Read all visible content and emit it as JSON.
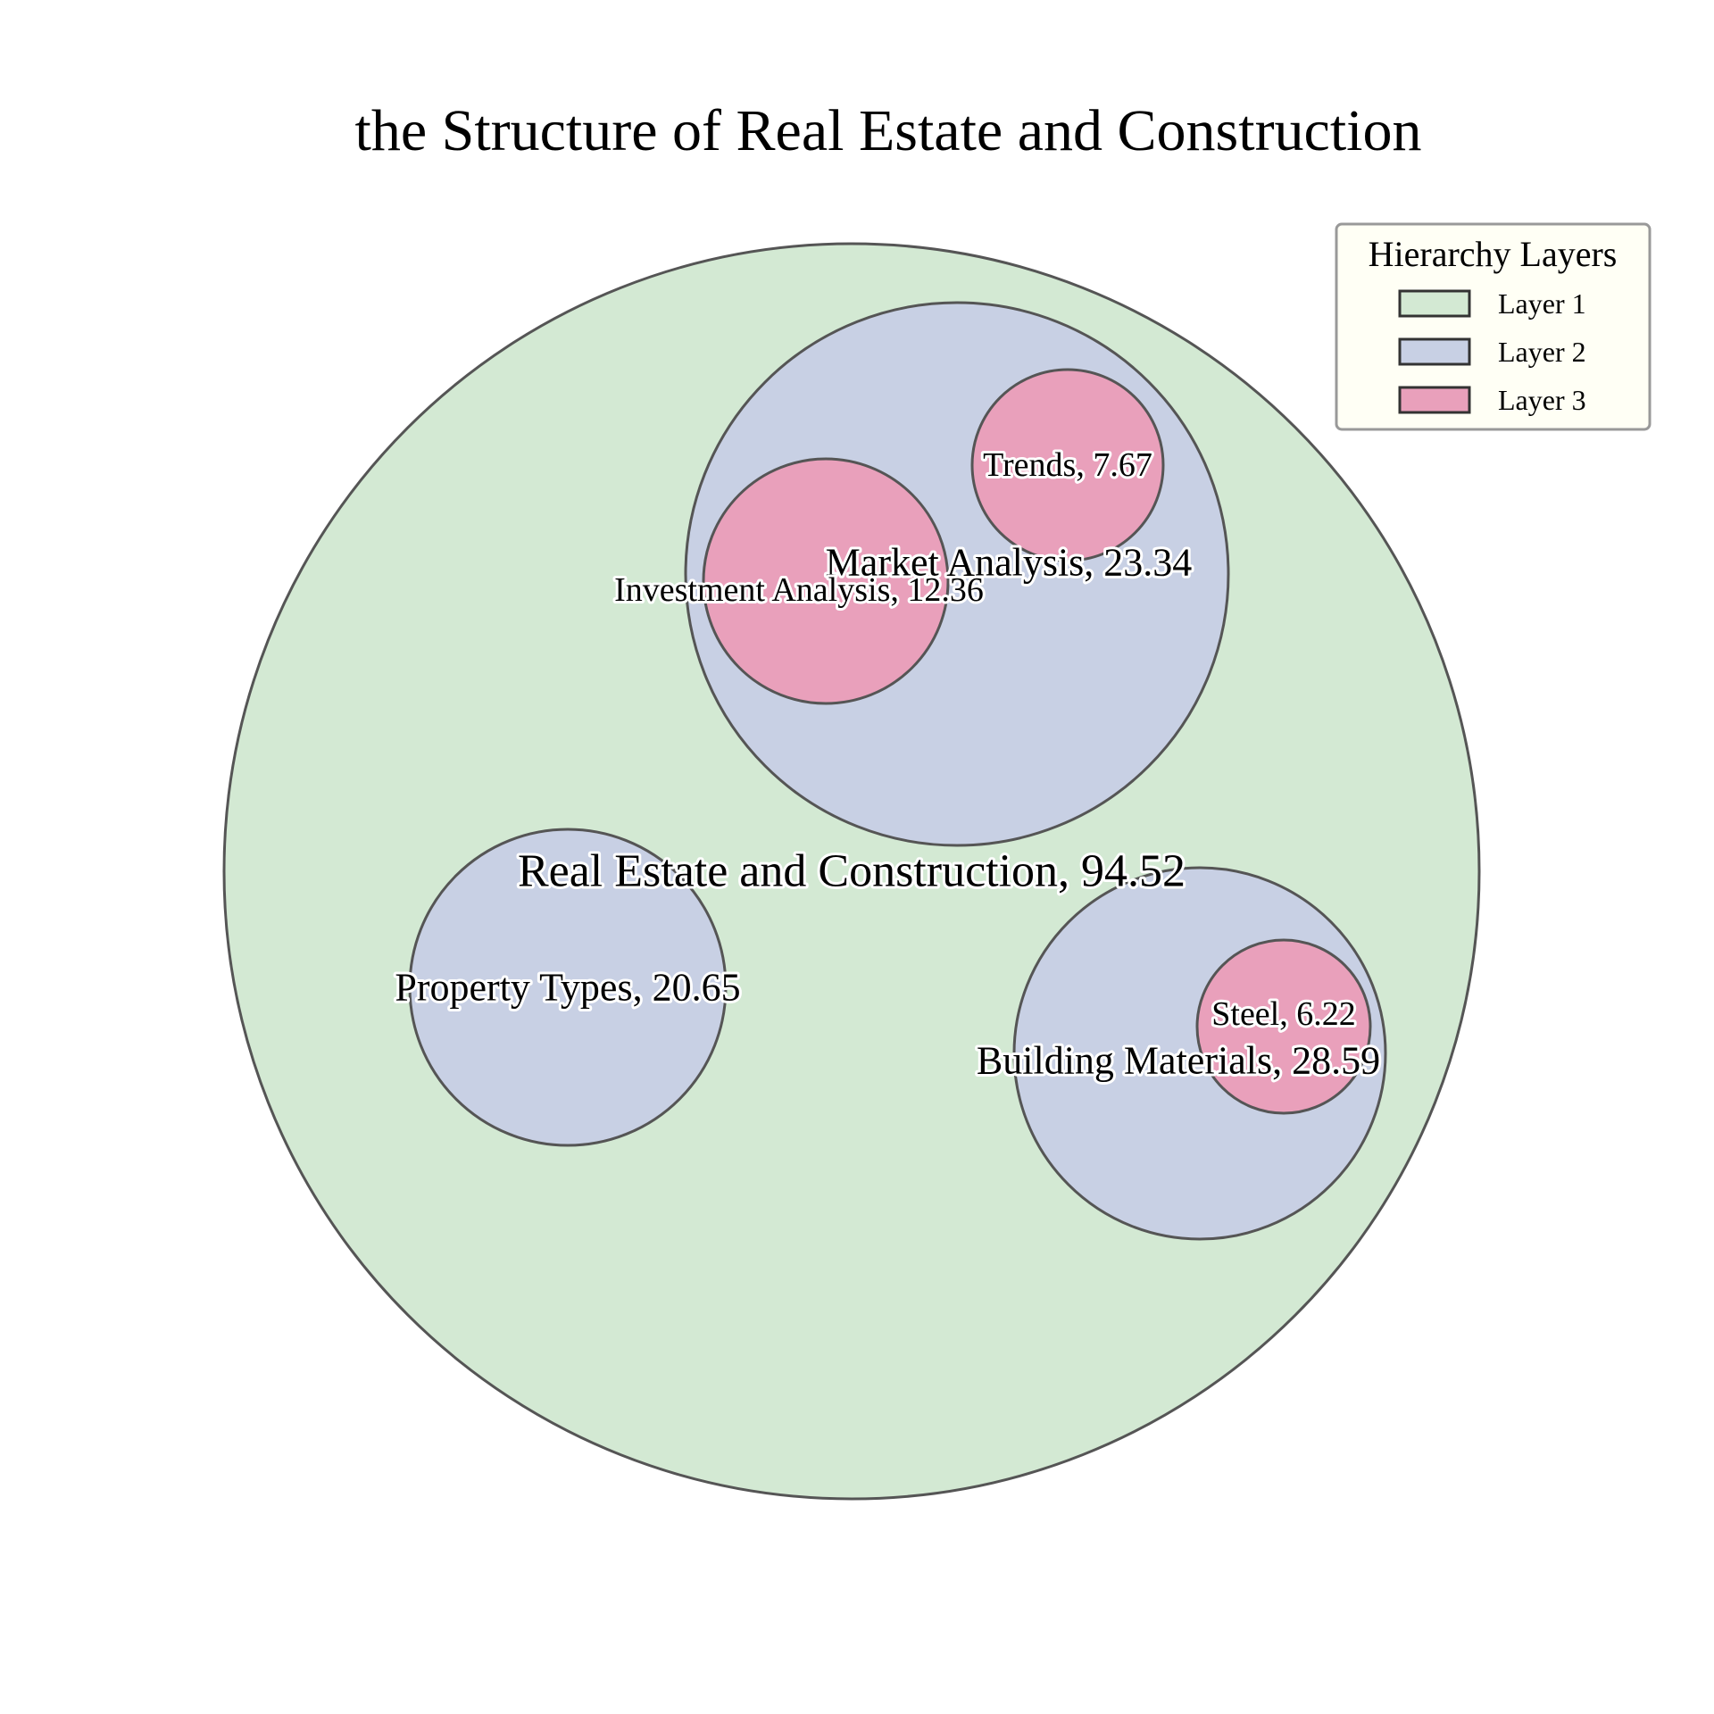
{
  "chart_data": {
    "type": "circle_packing",
    "title": "the Structure of Real Estate and Construction",
    "layer_colors": [
      "#d3e9d3",
      "#c8d0e4",
      "#e9a0bb"
    ],
    "edge_color": "#555555",
    "nodes": [
      {
        "id": "root",
        "label": "Real Estate and Construction, 94.52",
        "name": "Real Estate and Construction",
        "value": 94.52,
        "layer": 1,
        "parent": null
      },
      {
        "id": "market",
        "label": "Market Analysis, 23.34",
        "name": "Market Analysis",
        "value": 23.34,
        "layer": 2,
        "parent": "root"
      },
      {
        "id": "property",
        "label": "Property Types, 20.65",
        "name": "Property Types",
        "value": 20.65,
        "layer": 2,
        "parent": "root"
      },
      {
        "id": "materials",
        "label": "Building Materials, 28.59",
        "name": "Building Materials",
        "value": 28.59,
        "layer": 2,
        "parent": "root"
      },
      {
        "id": "investment",
        "label": "Investment Analysis, 12.36",
        "name": "Investment Analysis",
        "value": 12.36,
        "layer": 3,
        "parent": "market"
      },
      {
        "id": "trends",
        "label": "Trends, 7.67",
        "name": "Trends",
        "value": 7.67,
        "layer": 3,
        "parent": "market"
      },
      {
        "id": "steel",
        "label": "Steel, 6.22",
        "name": "Steel",
        "value": 6.22,
        "layer": 3,
        "parent": "materials"
      }
    ],
    "legend": {
      "title": "Hierarchy Layers",
      "position": "top-right",
      "items": [
        "Layer 1",
        "Layer 2",
        "Layer 3"
      ]
    }
  }
}
